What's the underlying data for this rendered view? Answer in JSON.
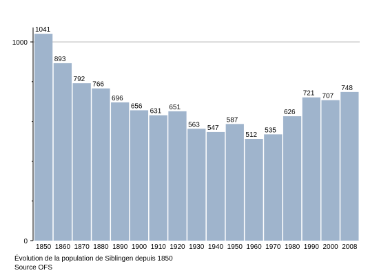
{
  "chart_data": {
    "type": "bar",
    "categories": [
      "1850",
      "1860",
      "1870",
      "1880",
      "1890",
      "1900",
      "1910",
      "1920",
      "1930",
      "1940",
      "1950",
      "1960",
      "1970",
      "1980",
      "1990",
      "2000",
      "2008"
    ],
    "values": [
      1041,
      893,
      792,
      766,
      696,
      656,
      631,
      651,
      563,
      547,
      587,
      512,
      535,
      626,
      721,
      707,
      748
    ],
    "y_ticks": [
      0,
      1000
    ],
    "ylim": [
      0,
      1100
    ],
    "grid": "horizontal line at 1000",
    "bar_color": "#9fb4cc",
    "caption": "Évolution de la population de Siblingen depuis 1850",
    "source": "Source OFS"
  }
}
